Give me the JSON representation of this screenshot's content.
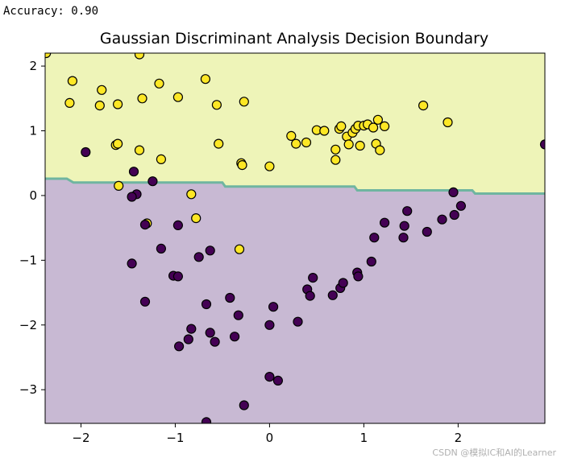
{
  "output": {
    "accuracy_text": "Accuracy: 0.90"
  },
  "watermark": "CSDN @模拟IC和AI的Learner",
  "chart_data": {
    "type": "scatter",
    "title": "Gaussian Discriminant Analysis Decision Boundary",
    "xlabel": "",
    "ylabel": "",
    "xlim": [
      -2.38,
      2.92
    ],
    "ylim": [
      -3.52,
      2.2
    ],
    "xticks": [
      -2,
      -1,
      0,
      1,
      2
    ],
    "yticks": [
      2,
      1,
      0,
      -1,
      -2,
      -3
    ],
    "grid": false,
    "legend": "none",
    "colors": {
      "class1_region": "#eef4b8",
      "class0_region": "#c8b9d3",
      "boundary": "#6fb5a0",
      "class1_point": "#fde725",
      "class0_point": "#440154",
      "marker_edge": "#000000"
    },
    "decision_boundary": [
      [
        -2.38,
        0.26
      ],
      [
        -2.15,
        0.26
      ],
      [
        -2.08,
        0.2
      ],
      [
        -0.5,
        0.2
      ],
      [
        -0.47,
        0.14
      ],
      [
        0.9,
        0.14
      ],
      [
        0.93,
        0.08
      ],
      [
        2.15,
        0.08
      ],
      [
        2.18,
        0.03
      ],
      [
        2.92,
        0.03
      ]
    ],
    "series": [
      {
        "class": 1,
        "points": [
          [
            -2.37,
            2.2
          ],
          [
            -1.38,
            2.18
          ],
          [
            -2.09,
            1.77
          ],
          [
            -0.68,
            1.8
          ],
          [
            -1.78,
            1.63
          ],
          [
            -1.17,
            1.73
          ],
          [
            -2.12,
            1.43
          ],
          [
            -1.8,
            1.39
          ],
          [
            -1.61,
            1.41
          ],
          [
            -1.35,
            1.5
          ],
          [
            -0.97,
            1.52
          ],
          [
            -0.56,
            1.4
          ],
          [
            -0.27,
            1.45
          ],
          [
            1.63,
            1.39
          ],
          [
            1.89,
            1.13
          ],
          [
            0.23,
            0.92
          ],
          [
            0.28,
            0.8
          ],
          [
            0.39,
            0.82
          ],
          [
            0.5,
            1.01
          ],
          [
            0.58,
            1.0
          ],
          [
            0.74,
            1.03
          ],
          [
            0.76,
            1.07
          ],
          [
            0.82,
            0.91
          ],
          [
            0.84,
            0.79
          ],
          [
            0.88,
            0.97
          ],
          [
            0.91,
            1.03
          ],
          [
            0.94,
            1.08
          ],
          [
            0.96,
            0.77
          ],
          [
            1.0,
            1.08
          ],
          [
            1.04,
            1.1
          ],
          [
            1.1,
            1.05
          ],
          [
            1.13,
            0.8
          ],
          [
            1.15,
            1.17
          ],
          [
            1.17,
            0.7
          ],
          [
            1.22,
            1.07
          ],
          [
            0.7,
            0.71
          ],
          [
            0.7,
            0.55
          ],
          [
            -1.63,
            0.78
          ],
          [
            -1.61,
            0.8
          ],
          [
            -1.38,
            0.7
          ],
          [
            -1.15,
            0.56
          ],
          [
            -0.54,
            0.8
          ],
          [
            -0.3,
            0.5
          ],
          [
            -0.29,
            0.47
          ],
          [
            0.0,
            0.45
          ],
          [
            -1.6,
            0.15
          ],
          [
            -0.83,
            0.02
          ],
          [
            -0.78,
            -0.35
          ],
          [
            -1.3,
            -0.43
          ],
          [
            -0.32,
            -0.83
          ]
        ]
      },
      {
        "class": 0,
        "points": [
          [
            -1.95,
            0.67
          ],
          [
            2.92,
            0.79
          ],
          [
            -1.44,
            0.37
          ],
          [
            -1.24,
            0.22
          ],
          [
            -1.41,
            0.02
          ],
          [
            -1.46,
            -0.02
          ],
          [
            -1.32,
            -0.45
          ],
          [
            -0.97,
            -0.46
          ],
          [
            -1.15,
            -0.82
          ],
          [
            -1.46,
            -1.05
          ],
          [
            -0.75,
            -0.95
          ],
          [
            -0.63,
            -0.85
          ],
          [
            -1.02,
            -1.24
          ],
          [
            -0.97,
            -1.25
          ],
          [
            -1.32,
            -1.64
          ],
          [
            -0.67,
            -1.68
          ],
          [
            -0.42,
            -1.58
          ],
          [
            -0.33,
            -1.85
          ],
          [
            -0.83,
            -2.06
          ],
          [
            -0.63,
            -2.12
          ],
          [
            -0.86,
            -2.22
          ],
          [
            -0.37,
            -2.18
          ],
          [
            -0.96,
            -2.33
          ],
          [
            -0.58,
            -2.26
          ],
          [
            0.04,
            -1.72
          ],
          [
            0.0,
            -2.0
          ],
          [
            0.3,
            -1.95
          ],
          [
            0.0,
            -2.8
          ],
          [
            0.09,
            -2.86
          ],
          [
            -0.27,
            -3.24
          ],
          [
            -0.67,
            -3.5
          ],
          [
            0.4,
            -1.45
          ],
          [
            0.43,
            -1.55
          ],
          [
            0.46,
            -1.27
          ],
          [
            0.67,
            -1.54
          ],
          [
            0.75,
            -1.43
          ],
          [
            0.78,
            -1.35
          ],
          [
            0.93,
            -1.19
          ],
          [
            0.94,
            -1.25
          ],
          [
            1.08,
            -1.02
          ],
          [
            1.11,
            -0.65
          ],
          [
            1.22,
            -0.42
          ],
          [
            1.42,
            -0.65
          ],
          [
            1.43,
            -0.47
          ],
          [
            1.46,
            -0.24
          ],
          [
            1.67,
            -0.56
          ],
          [
            1.83,
            -0.37
          ],
          [
            1.96,
            -0.3
          ],
          [
            2.03,
            -0.16
          ],
          [
            1.95,
            0.05
          ]
        ]
      }
    ]
  }
}
